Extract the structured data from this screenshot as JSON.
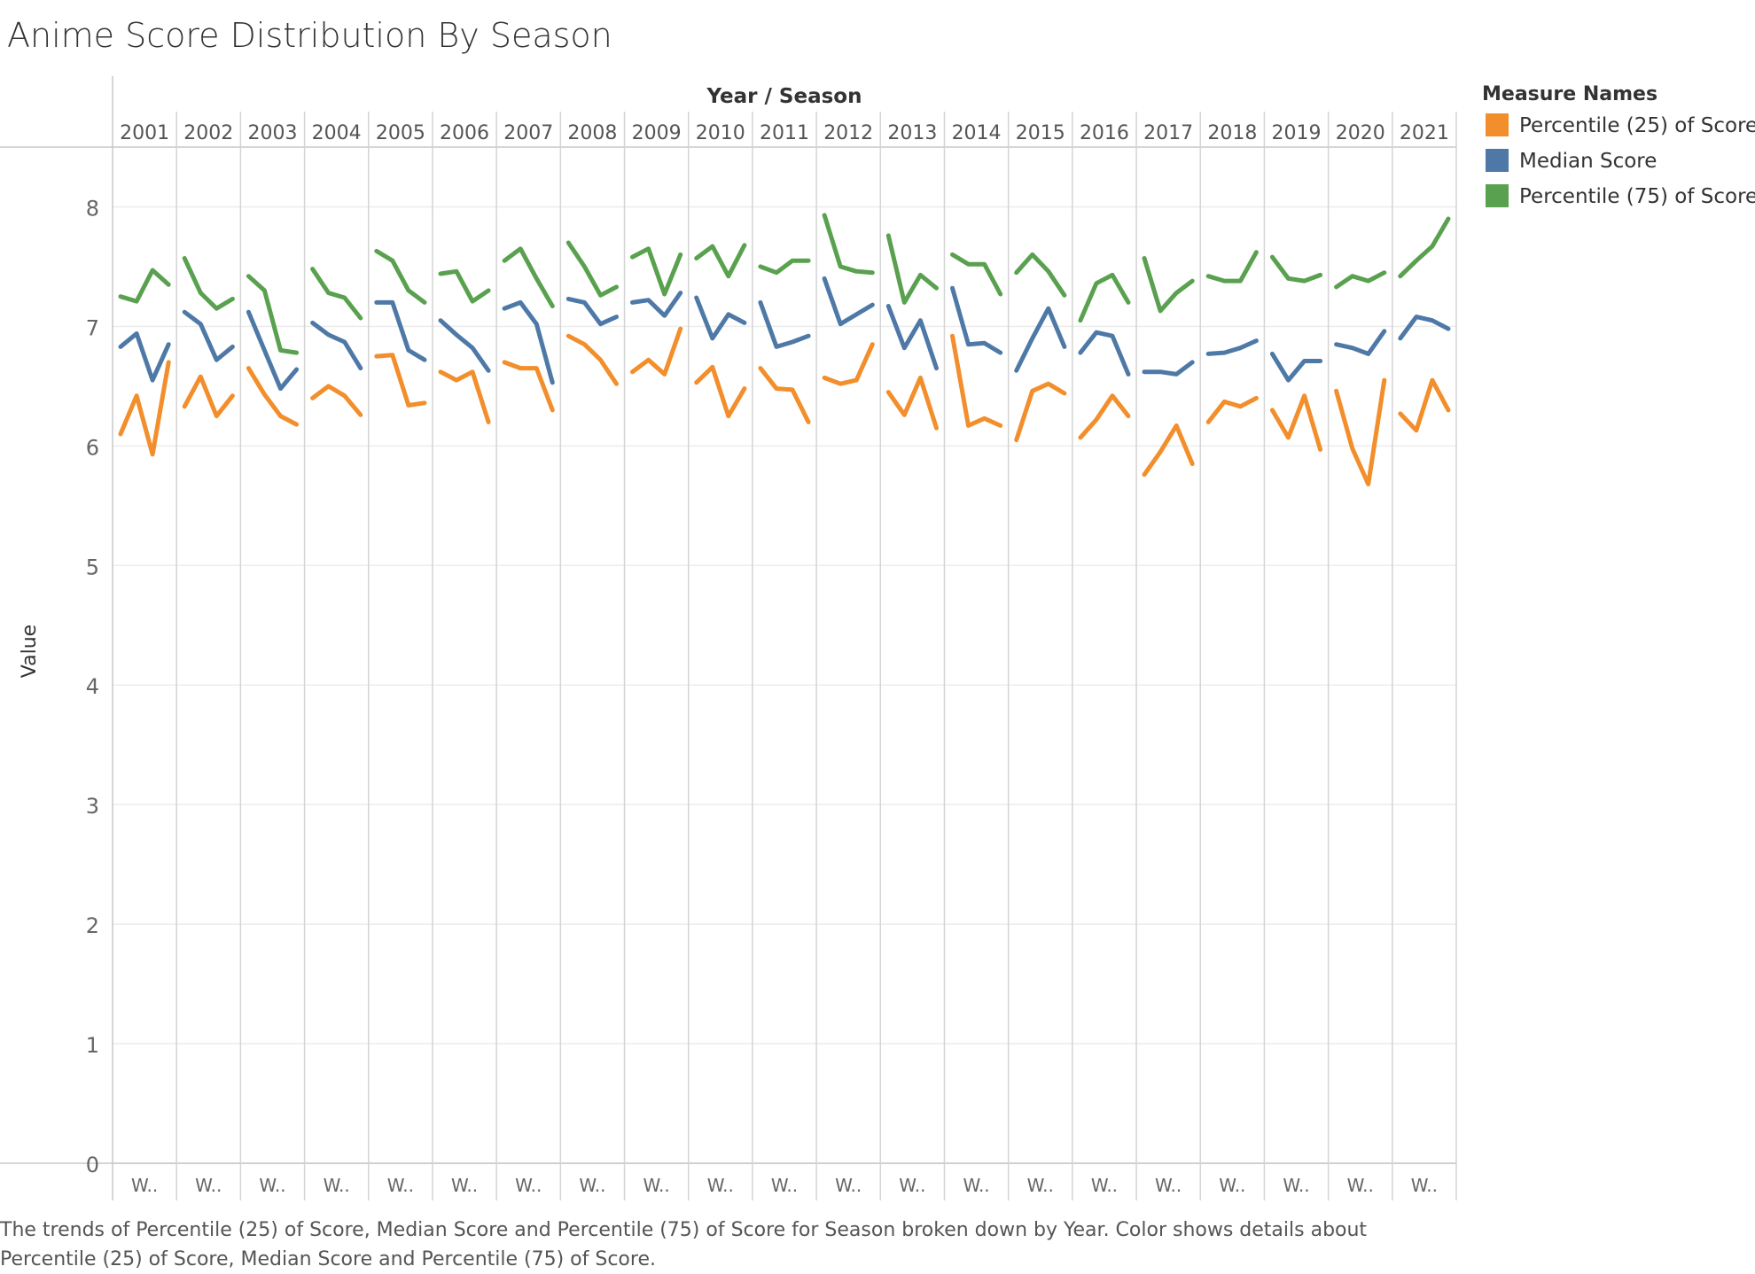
{
  "title": "Anime Score Distribution By Season",
  "caption": "The trends of Percentile (25) of Score, Median Score and Percentile (75) of Score for Season broken down by Year.  Color shows details about Percentile (25) of Score, Median Score and Percentile (75) of Score.",
  "legend": {
    "title": "Measure Names",
    "items": [
      {
        "label": "Percentile (25) of Score",
        "color": "#f28e2b"
      },
      {
        "label": "Median Score",
        "color": "#4e79a7"
      },
      {
        "label": "Percentile (75) of Score",
        "color": "#59a14f"
      }
    ]
  },
  "chart_data": {
    "type": "line",
    "header_title": "Year / Season",
    "ylabel": "Value",
    "ylim": [
      0,
      8.5
    ],
    "yticks": [
      0,
      1,
      2,
      3,
      4,
      5,
      6,
      7,
      8
    ],
    "grid": true,
    "legend_position": "right",
    "season_label": "W..",
    "years": [
      "2001",
      "2002",
      "2003",
      "2004",
      "2005",
      "2006",
      "2007",
      "2008",
      "2009",
      "2010",
      "2011",
      "2012",
      "2013",
      "2014",
      "2015",
      "2016",
      "2017",
      "2018",
      "2019",
      "2020",
      "2021"
    ],
    "series": [
      {
        "name": "Percentile (25) of Score",
        "color": "#f28e2b",
        "values": [
          [
            6.1,
            6.42,
            5.93,
            6.7
          ],
          [
            6.33,
            6.58,
            6.25,
            6.42
          ],
          [
            6.65,
            6.43,
            6.25,
            6.18
          ],
          [
            6.4,
            6.5,
            6.42,
            6.26
          ],
          [
            6.75,
            6.76,
            6.34,
            6.36
          ],
          [
            6.62,
            6.55,
            6.62,
            6.2
          ],
          [
            6.7,
            6.65,
            6.65,
            6.3
          ],
          [
            6.92,
            6.85,
            6.72,
            6.52
          ],
          [
            6.62,
            6.72,
            6.6,
            6.98
          ],
          [
            6.53,
            6.66,
            6.25,
            6.48
          ],
          [
            6.65,
            6.48,
            6.47,
            6.2
          ],
          [
            6.57,
            6.52,
            6.55,
            6.85
          ],
          [
            6.45,
            6.26,
            6.57,
            6.15
          ],
          [
            6.92,
            6.17,
            6.23,
            6.17
          ],
          [
            6.05,
            6.46,
            6.52,
            6.44
          ],
          [
            6.07,
            6.22,
            6.42,
            6.25
          ],
          [
            5.76,
            5.95,
            6.17,
            5.85
          ],
          [
            6.2,
            6.37,
            6.33,
            6.4
          ],
          [
            6.3,
            6.07,
            6.42,
            5.97
          ],
          [
            6.46,
            5.98,
            5.68,
            6.55
          ],
          [
            6.27,
            6.13,
            6.55,
            6.3
          ]
        ]
      },
      {
        "name": "Median Score",
        "color": "#4e79a7",
        "values": [
          [
            6.83,
            6.94,
            6.55,
            6.85
          ],
          [
            7.12,
            7.02,
            6.72,
            6.83
          ],
          [
            7.12,
            6.8,
            6.48,
            6.64
          ],
          [
            7.03,
            6.93,
            6.87,
            6.65
          ],
          [
            7.2,
            7.2,
            6.8,
            6.72
          ],
          [
            7.05,
            6.93,
            6.82,
            6.63
          ],
          [
            7.15,
            7.2,
            7.02,
            6.53
          ],
          [
            7.23,
            7.2,
            7.02,
            7.08
          ],
          [
            7.2,
            7.22,
            7.09,
            7.28
          ],
          [
            7.24,
            6.9,
            7.1,
            7.03
          ],
          [
            7.2,
            6.83,
            6.87,
            6.92
          ],
          [
            7.4,
            7.02,
            7.1,
            7.18
          ],
          [
            7.17,
            6.82,
            7.05,
            6.65
          ],
          [
            7.32,
            6.85,
            6.86,
            6.78
          ],
          [
            6.63,
            6.9,
            7.15,
            6.83
          ],
          [
            6.78,
            6.95,
            6.92,
            6.6
          ],
          [
            6.62,
            6.62,
            6.6,
            6.7
          ],
          [
            6.77,
            6.78,
            6.82,
            6.88
          ],
          [
            6.77,
            6.55,
            6.71,
            6.71
          ],
          [
            6.85,
            6.82,
            6.77,
            6.96
          ],
          [
            6.9,
            7.08,
            7.05,
            6.98
          ]
        ]
      },
      {
        "name": "Percentile (75) of Score",
        "color": "#59a14f",
        "values": [
          [
            7.25,
            7.21,
            7.47,
            7.35
          ],
          [
            7.57,
            7.28,
            7.15,
            7.23
          ],
          [
            7.42,
            7.3,
            6.8,
            6.78
          ],
          [
            7.48,
            7.28,
            7.24,
            7.07
          ],
          [
            7.63,
            7.55,
            7.3,
            7.2
          ],
          [
            7.44,
            7.46,
            7.21,
            7.3
          ],
          [
            7.55,
            7.65,
            7.4,
            7.17
          ],
          [
            7.7,
            7.5,
            7.26,
            7.33
          ],
          [
            7.58,
            7.65,
            7.27,
            7.6
          ],
          [
            7.57,
            7.67,
            7.42,
            7.68
          ],
          [
            7.5,
            7.45,
            7.55,
            7.55
          ],
          [
            7.93,
            7.5,
            7.46,
            7.45
          ],
          [
            7.76,
            7.2,
            7.43,
            7.32
          ],
          [
            7.6,
            7.52,
            7.52,
            7.27
          ],
          [
            7.45,
            7.6,
            7.46,
            7.26
          ],
          [
            7.05,
            7.36,
            7.43,
            7.2
          ],
          [
            7.57,
            7.13,
            7.28,
            7.38
          ],
          [
            7.42,
            7.38,
            7.38,
            7.62
          ],
          [
            7.58,
            7.4,
            7.38,
            7.43
          ],
          [
            7.33,
            7.42,
            7.38,
            7.45
          ],
          [
            7.42,
            7.55,
            7.67,
            7.9
          ]
        ]
      }
    ]
  }
}
